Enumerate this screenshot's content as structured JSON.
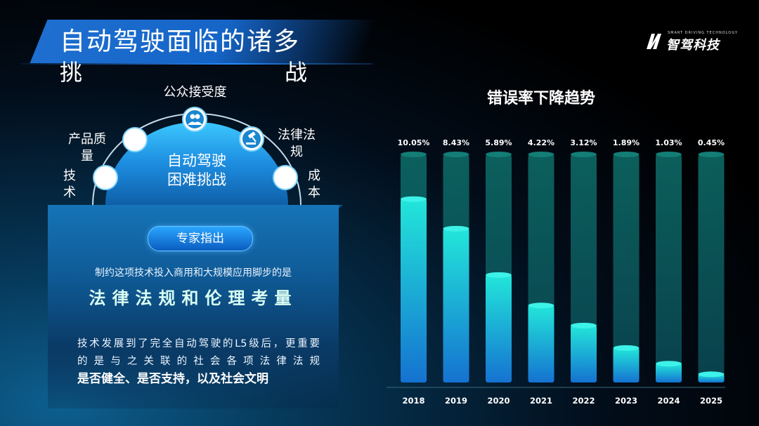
{
  "header": {
    "title_line1": "自动驾驶面临的诸多",
    "title_line2_left": "挑",
    "title_line2_right": "战"
  },
  "logo": {
    "small_text": "SMART DRIVING TECHNOLOGY",
    "name": "智驾科技"
  },
  "dome": {
    "center_label_1": "自动驾驶",
    "center_label_2": "困难挑战",
    "nodes": {
      "public": "公众接受度",
      "quality_1": "产品质",
      "quality_2": "量",
      "tech_1": "技",
      "tech_2": "术",
      "law_1": "法律法",
      "law_2": "规",
      "cost_1": "成",
      "cost_2": "本"
    }
  },
  "card": {
    "badge": "专家指出",
    "line1": "制约这项技术投入商用和大规模应用脚步的是",
    "emphasis": "法律法规和伦理考量",
    "p1": "技术发展到了完全自动驾驶的L5级后，更重要",
    "p2": "的是与之关联的社会各项法律法规",
    "p3": "是否健全、是否支持，以及社会文明"
  },
  "colors": {
    "accent": "#1e6fd0",
    "bar_bg": "#0f6e68",
    "bar_top": "#1fe0d6",
    "bar_bottom": "#1583d8"
  },
  "chart_data": {
    "type": "bar",
    "title": "错误率下降趋势",
    "categories": [
      "2018",
      "2019",
      "2020",
      "2021",
      "2022",
      "2023",
      "2024",
      "2025"
    ],
    "values": [
      10.05,
      8.43,
      5.89,
      4.22,
      3.12,
      1.89,
      1.03,
      0.45
    ],
    "value_labels": [
      "10.05%",
      "8.43%",
      "5.89%",
      "4.22%",
      "3.12%",
      "1.89%",
      "1.03%",
      "0.45%"
    ],
    "ylim": [
      0,
      12.5
    ],
    "grid": false
  }
}
